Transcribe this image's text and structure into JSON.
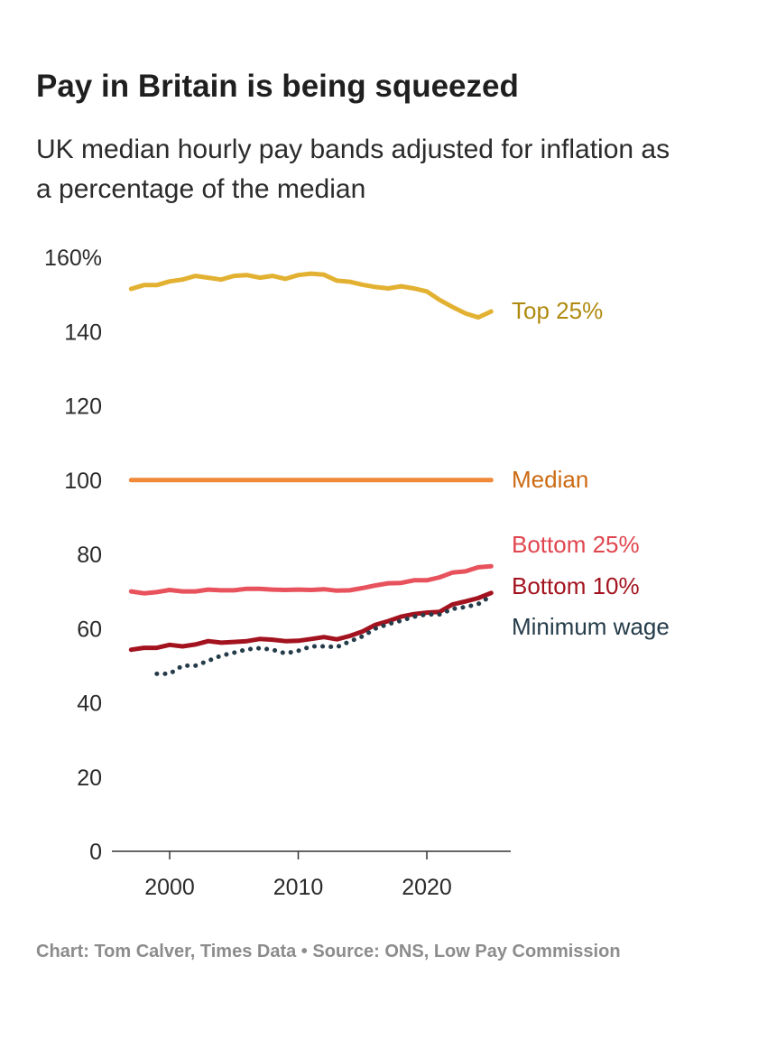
{
  "header": {
    "title": "Pay in Britain is being squeezed",
    "subtitle": "UK median hourly pay bands adjusted for inflation as a percentage of the median"
  },
  "footer": {
    "source": "Chart: Tom Calver, Times Data • Source: ONS, Low Pay Commission"
  },
  "chart_data": {
    "type": "line",
    "title": "Pay in Britain is being squeezed",
    "subtitle": "UK median hourly pay bands adjusted for inflation as a percentage of the median",
    "xlabel": "",
    "ylabel": "",
    "xlim": [
      1996,
      2026
    ],
    "ylim": [
      0,
      160
    ],
    "x_ticks": [
      2000,
      2010,
      2020
    ],
    "x_tick_labels": [
      "2000",
      "2010",
      "2020"
    ],
    "y_ticks": [
      0,
      20,
      40,
      60,
      80,
      100,
      120,
      140,
      160
    ],
    "y_tick_labels": [
      "0",
      "20",
      "40",
      "60",
      "80",
      "100",
      "120",
      "140",
      "160%"
    ],
    "grid": false,
    "legend": "direct labels at right",
    "series": [
      {
        "name": "Top 25%",
        "color": "#e3b132",
        "label_color": "#b08a10",
        "style": "solid",
        "x": [
          1997,
          1998,
          1999,
          2000,
          2001,
          2002,
          2003,
          2004,
          2005,
          2006,
          2007,
          2008,
          2009,
          2010,
          2011,
          2012,
          2013,
          2014,
          2015,
          2016,
          2017,
          2018,
          2019,
          2020,
          2021,
          2022,
          2023,
          2024,
          2025
        ],
        "values": [
          151.5,
          152.5,
          152.5,
          153.5,
          154,
          155,
          154.5,
          154,
          155,
          155.2,
          154.5,
          155,
          154.2,
          155.2,
          155.6,
          155.3,
          153.7,
          153.4,
          152.6,
          152,
          151.6,
          152.2,
          151.6,
          150.8,
          148.5,
          146.6,
          144.9,
          143.8,
          145.4
        ]
      },
      {
        "name": "Median",
        "color": "#f0893a",
        "label_color": "#cc6a12",
        "style": "solid",
        "x": [
          1997,
          2025
        ],
        "values": [
          100,
          100
        ]
      },
      {
        "name": "Bottom 25%",
        "color": "#e8525c",
        "label_color": "#e0464f",
        "style": "solid",
        "x": [
          1997,
          1998,
          1999,
          2000,
          2001,
          2002,
          2003,
          2004,
          2005,
          2006,
          2007,
          2008,
          2009,
          2010,
          2011,
          2012,
          2013,
          2014,
          2015,
          2016,
          2017,
          2018,
          2019,
          2020,
          2021,
          2022,
          2023,
          2024,
          2025
        ],
        "values": [
          70,
          69.5,
          69.8,
          70.4,
          70,
          70,
          70.5,
          70.3,
          70.3,
          70.7,
          70.7,
          70.5,
          70.4,
          70.5,
          70.4,
          70.6,
          70.2,
          70.3,
          70.9,
          71.6,
          72.2,
          72.3,
          73,
          73,
          73.8,
          75.1,
          75.4,
          76.5,
          76.8
        ]
      },
      {
        "name": "Bottom 10%",
        "color": "#a3131f",
        "label_color": "#a3131f",
        "style": "solid",
        "x": [
          1997,
          1998,
          1999,
          2000,
          2001,
          2002,
          2003,
          2004,
          2005,
          2006,
          2007,
          2008,
          2009,
          2010,
          2011,
          2012,
          2013,
          2014,
          2015,
          2016,
          2017,
          2018,
          2019,
          2020,
          2021,
          2022,
          2023,
          2024,
          2025
        ],
        "values": [
          54.3,
          54.8,
          54.8,
          55.6,
          55.2,
          55.7,
          56.6,
          56.2,
          56.4,
          56.6,
          57.2,
          57,
          56.6,
          56.7,
          57.2,
          57.7,
          57.1,
          58,
          59.2,
          61,
          62,
          63.2,
          63.9,
          64.3,
          64.5,
          66.5,
          67.3,
          68.2,
          69.6
        ]
      },
      {
        "name": "Minimum wage",
        "color": "#253c4a",
        "label_color": "#253c4a",
        "style": "dotted",
        "x": [
          1999,
          2000,
          2001,
          2002,
          2003,
          2004,
          2005,
          2006,
          2007,
          2008,
          2009,
          2010,
          2011,
          2012,
          2013,
          2014,
          2015,
          2016,
          2017,
          2018,
          2019,
          2020,
          2021,
          2022,
          2023,
          2024,
          2025
        ],
        "values": [
          47.8,
          47.8,
          50,
          50,
          51.3,
          52.7,
          53.5,
          54.4,
          54.7,
          54.3,
          53.3,
          54,
          55.2,
          55.2,
          55,
          56.5,
          57.9,
          60,
          61.2,
          62.1,
          63.2,
          63.8,
          63.8,
          65.3,
          65.8,
          66.6,
          68.8
        ]
      }
    ]
  }
}
